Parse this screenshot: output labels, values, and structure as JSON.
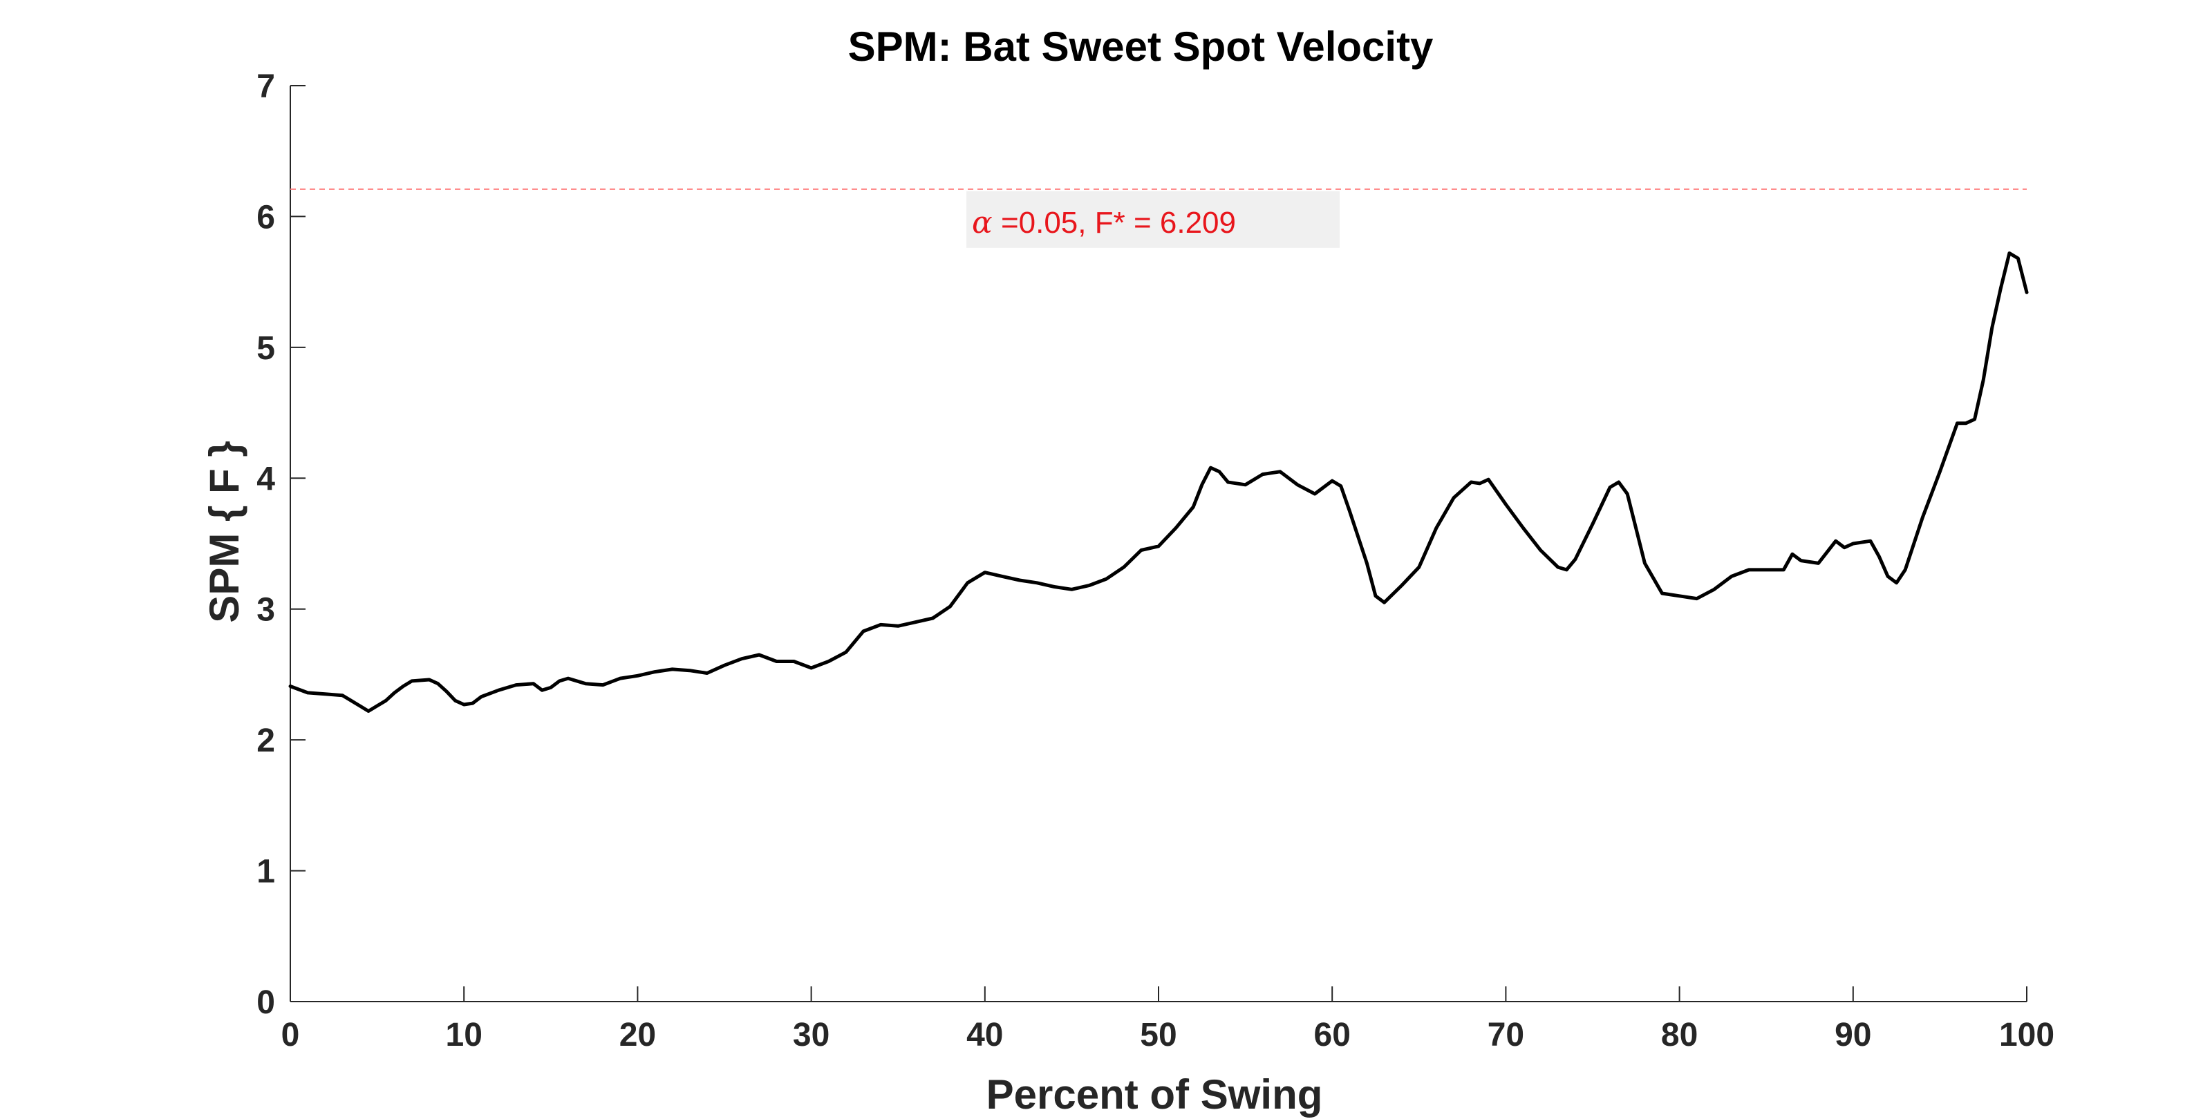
{
  "chart_data": {
    "type": "line",
    "title": "SPM: Bat Sweet Spot Velocity",
    "xlabel": "Percent of Swing",
    "ylabel": "SPM { F }",
    "xlim": [
      0,
      100
    ],
    "ylim": [
      0,
      7
    ],
    "xticks": [
      0,
      10,
      20,
      30,
      40,
      50,
      60,
      70,
      80,
      90,
      100
    ],
    "yticks": [
      0,
      1,
      2,
      3,
      4,
      5,
      6,
      7
    ],
    "xtick_labels": [
      "0",
      "10",
      "20",
      "30",
      "40",
      "50",
      "60",
      "70",
      "80",
      "90",
      "100"
    ],
    "ytick_labels": [
      "0",
      "1",
      "2",
      "3",
      "4",
      "5",
      "6",
      "7"
    ],
    "grid": false,
    "legend": "none",
    "series": [
      {
        "color": "#000000",
        "x": [
          0,
          1,
          2,
          3,
          3.5,
          4,
          4.5,
          5,
          5.5,
          6,
          6.5,
          7,
          8,
          8.5,
          9,
          9.5,
          10,
          10.5,
          11,
          12,
          13,
          14,
          14.5,
          15,
          15.5,
          16,
          17,
          18,
          19,
          20,
          21,
          22,
          23,
          24,
          25,
          26,
          27,
          28,
          29,
          30,
          31,
          32,
          33,
          34,
          35,
          36,
          37,
          38,
          39,
          40,
          41,
          42,
          43,
          44,
          45,
          46,
          47,
          48,
          49,
          50,
          51,
          52,
          52.5,
          53,
          53.5,
          54,
          55,
          56,
          57,
          58,
          59,
          60,
          60.5,
          61,
          62,
          62.5,
          63,
          64,
          65,
          66,
          67,
          68,
          68.5,
          69,
          70,
          71,
          72,
          73,
          73.5,
          74,
          75,
          76,
          76.5,
          77,
          78,
          79,
          80,
          81,
          82,
          83,
          84,
          85,
          86,
          86.5,
          87,
          88,
          89,
          89.5,
          90,
          91,
          91.5,
          92,
          92.5,
          93,
          94,
          95,
          96,
          96.5,
          97,
          97.5,
          98,
          98.5,
          99,
          99.5,
          100
        ],
        "y": [
          2.41,
          2.36,
          2.35,
          2.34,
          2.3,
          2.26,
          2.22,
          2.26,
          2.3,
          2.36,
          2.41,
          2.45,
          2.46,
          2.43,
          2.37,
          2.3,
          2.27,
          2.28,
          2.33,
          2.38,
          2.42,
          2.43,
          2.38,
          2.4,
          2.45,
          2.47,
          2.43,
          2.42,
          2.47,
          2.49,
          2.52,
          2.54,
          2.53,
          2.51,
          2.57,
          2.62,
          2.65,
          2.6,
          2.6,
          2.55,
          2.6,
          2.67,
          2.83,
          2.88,
          2.87,
          2.9,
          2.93,
          3.02,
          3.2,
          3.28,
          3.25,
          3.22,
          3.2,
          3.17,
          3.15,
          3.18,
          3.23,
          3.32,
          3.45,
          3.48,
          3.62,
          3.78,
          3.95,
          4.08,
          4.05,
          3.97,
          3.95,
          4.03,
          4.05,
          3.95,
          3.88,
          3.98,
          3.94,
          3.75,
          3.35,
          3.1,
          3.05,
          3.18,
          3.32,
          3.62,
          3.85,
          3.97,
          3.96,
          3.99,
          3.8,
          3.62,
          3.45,
          3.32,
          3.3,
          3.38,
          3.65,
          3.93,
          3.97,
          3.88,
          3.35,
          3.12,
          3.1,
          3.08,
          3.15,
          3.25,
          3.3,
          3.3,
          3.3,
          3.42,
          3.37,
          3.35,
          3.52,
          3.47,
          3.5,
          3.52,
          3.4,
          3.25,
          3.2,
          3.3,
          3.7,
          4.05,
          4.42,
          4.42,
          4.45,
          4.75,
          5.15,
          5.45,
          5.72,
          5.68,
          5.42
        ]
      }
    ],
    "threshold": {
      "value": 6.209,
      "color": "#ff8080",
      "style": "dashed",
      "alpha_symbol": "α",
      "label": " =0.05,     F* = 6.209"
    }
  }
}
